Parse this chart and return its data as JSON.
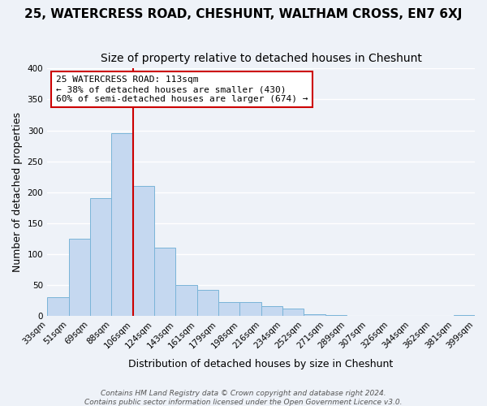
{
  "title": "25, WATERCRESS ROAD, CHESHUNT, WALTHAM CROSS, EN7 6XJ",
  "subtitle": "Size of property relative to detached houses in Cheshunt",
  "xlabel": "Distribution of detached houses by size in Cheshunt",
  "ylabel": "Number of detached properties",
  "bin_labels": [
    "33sqm",
    "51sqm",
    "69sqm",
    "88sqm",
    "106sqm",
    "124sqm",
    "143sqm",
    "161sqm",
    "179sqm",
    "198sqm",
    "216sqm",
    "234sqm",
    "252sqm",
    "271sqm",
    "289sqm",
    "307sqm",
    "326sqm",
    "344sqm",
    "362sqm",
    "381sqm",
    "399sqm"
  ],
  "bar_values": [
    30,
    125,
    190,
    295,
    210,
    110,
    50,
    42,
    23,
    22,
    16,
    12,
    3,
    1,
    0,
    0,
    0,
    0,
    0,
    2
  ],
  "bar_color": "#c5d8f0",
  "bar_edgecolor": "#7ab4d8",
  "vline_x": 4.0,
  "vline_color": "#cc0000",
  "ylim": [
    0,
    400
  ],
  "yticks": [
    0,
    50,
    100,
    150,
    200,
    250,
    300,
    350,
    400
  ],
  "annotation_title": "25 WATERCRESS ROAD: 113sqm",
  "annotation_line1": "← 38% of detached houses are smaller (430)",
  "annotation_line2": "60% of semi-detached houses are larger (674) →",
  "annotation_box_color": "#ffffff",
  "annotation_box_edgecolor": "#cc0000",
  "footer1": "Contains HM Land Registry data © Crown copyright and database right 2024.",
  "footer2": "Contains public sector information licensed under the Open Government Licence v3.0.",
  "background_color": "#eef2f8",
  "grid_color": "#ffffff",
  "title_fontsize": 11,
  "subtitle_fontsize": 10,
  "axis_label_fontsize": 9,
  "tick_fontsize": 7.5,
  "footer_fontsize": 6.5
}
